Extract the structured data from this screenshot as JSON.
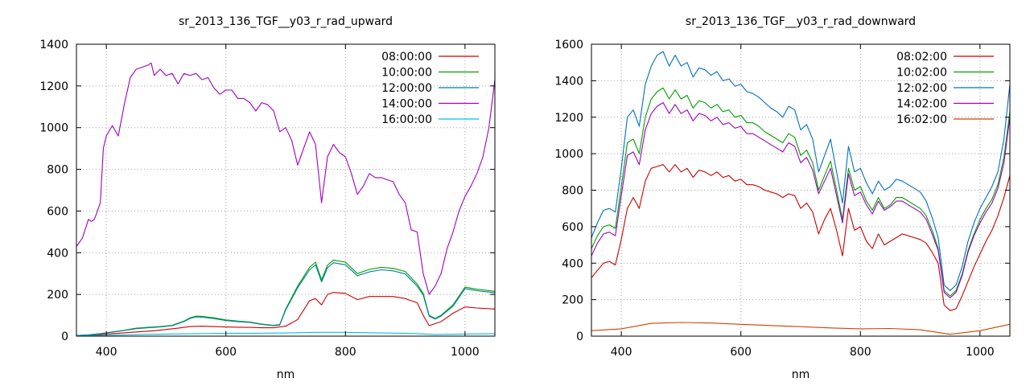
{
  "chart_data": [
    {
      "type": "line",
      "title": "sr_2013_136_TGF__y03_r_rad_upward",
      "xlabel": "nm",
      "ylabel": "",
      "xlim": [
        350,
        1050
      ],
      "ylim": [
        0,
        1400
      ],
      "xticks": [
        400,
        600,
        800,
        1000
      ],
      "yticks": [
        0,
        200,
        400,
        600,
        800,
        1000,
        1200,
        1400
      ],
      "grid": true,
      "legend": "top-right",
      "series": [
        {
          "name": "08:00:00",
          "color": "#cc0000",
          "x": [
            350,
            370,
            400,
            420,
            440,
            460,
            480,
            500,
            520,
            540,
            560,
            580,
            600,
            620,
            640,
            660,
            680,
            700,
            720,
            740,
            750,
            760,
            770,
            780,
            800,
            820,
            840,
            860,
            880,
            900,
            920,
            930,
            940,
            960,
            980,
            1000,
            1020,
            1050
          ],
          "y": [
            2,
            4,
            10,
            14,
            18,
            22,
            26,
            32,
            38,
            46,
            48,
            46,
            44,
            43,
            42,
            40,
            40,
            48,
            80,
            170,
            180,
            150,
            200,
            210,
            205,
            175,
            190,
            190,
            190,
            180,
            160,
            100,
            50,
            70,
            110,
            140,
            135,
            130
          ]
        },
        {
          "name": "10:00:00",
          "color": "#00a000",
          "x": [
            350,
            370,
            390,
            410,
            430,
            450,
            470,
            490,
            510,
            530,
            540,
            550,
            560,
            580,
            600,
            620,
            640,
            660,
            680,
            690,
            700,
            720,
            740,
            750,
            760,
            770,
            780,
            800,
            820,
            840,
            860,
            880,
            900,
            920,
            930,
            940,
            950,
            960,
            980,
            1000,
            1020,
            1050
          ],
          "y": [
            3,
            6,
            12,
            20,
            28,
            38,
            42,
            46,
            52,
            72,
            88,
            96,
            95,
            88,
            78,
            72,
            68,
            58,
            52,
            55,
            130,
            240,
            330,
            355,
            270,
            340,
            365,
            355,
            300,
            320,
            330,
            325,
            310,
            250,
            205,
            100,
            85,
            100,
            150,
            235,
            225,
            215
          ]
        },
        {
          "name": "12:00:00",
          "color": "#0080a0",
          "x": [
            350,
            370,
            390,
            410,
            430,
            450,
            470,
            490,
            510,
            530,
            540,
            550,
            560,
            580,
            600,
            620,
            640,
            660,
            680,
            690,
            700,
            720,
            740,
            750,
            760,
            770,
            780,
            800,
            820,
            840,
            860,
            880,
            900,
            920,
            930,
            940,
            950,
            960,
            980,
            1000,
            1020,
            1050
          ],
          "y": [
            3,
            6,
            12,
            19,
            27,
            36,
            40,
            44,
            50,
            70,
            85,
            92,
            91,
            84,
            75,
            70,
            66,
            56,
            50,
            53,
            125,
            232,
            318,
            342,
            260,
            328,
            352,
            342,
            290,
            308,
            318,
            313,
            298,
            240,
            198,
            96,
            82,
            96,
            144,
            228,
            218,
            208
          ]
        },
        {
          "name": "14:00:00",
          "color": "#a000c0",
          "x": [
            350,
            360,
            370,
            375,
            380,
            390,
            395,
            400,
            410,
            420,
            430,
            440,
            450,
            460,
            470,
            475,
            480,
            490,
            500,
            510,
            520,
            530,
            540,
            550,
            560,
            570,
            580,
            590,
            600,
            610,
            620,
            630,
            640,
            650,
            660,
            670,
            680,
            690,
            700,
            710,
            720,
            730,
            740,
            750,
            760,
            770,
            780,
            790,
            800,
            810,
            820,
            830,
            840,
            850,
            860,
            870,
            880,
            890,
            900,
            910,
            920,
            930,
            940,
            950,
            960,
            970,
            980,
            990,
            1000,
            1010,
            1020,
            1030,
            1040,
            1050
          ],
          "y": [
            430,
            470,
            560,
            550,
            560,
            640,
            900,
            960,
            1010,
            960,
            1110,
            1240,
            1280,
            1290,
            1300,
            1310,
            1250,
            1280,
            1250,
            1260,
            1210,
            1260,
            1250,
            1260,
            1230,
            1240,
            1190,
            1160,
            1180,
            1180,
            1140,
            1140,
            1120,
            1080,
            1120,
            1110,
            1080,
            980,
            1000,
            940,
            820,
            900,
            980,
            920,
            640,
            860,
            920,
            880,
            860,
            780,
            680,
            720,
            780,
            760,
            760,
            750,
            740,
            680,
            640,
            510,
            500,
            300,
            200,
            240,
            300,
            420,
            500,
            600,
            670,
            720,
            780,
            860,
            1000,
            1230
          ]
        },
        {
          "name": "16:00:00",
          "color": "#00c0e0",
          "x": [
            350,
            400,
            450,
            500,
            550,
            600,
            650,
            700,
            750,
            800,
            850,
            900,
            950,
            1000,
            1050
          ],
          "y": [
            2,
            4,
            8,
            10,
            12,
            14,
            14,
            15,
            18,
            18,
            16,
            14,
            8,
            10,
            12
          ]
        }
      ]
    },
    {
      "type": "line",
      "title": "sr_2013_136_TGF__y03_r_rad_downward",
      "xlabel": "nm",
      "ylabel": "",
      "xlim": [
        350,
        1050
      ],
      "ylim": [
        0,
        1600
      ],
      "xticks": [
        400,
        600,
        800,
        1000
      ],
      "yticks": [
        0,
        200,
        400,
        600,
        800,
        1000,
        1200,
        1400,
        1600
      ],
      "grid": true,
      "legend": "top-right",
      "series": [
        {
          "name": "08:02:00",
          "color": "#cc0000",
          "x": [
            350,
            360,
            370,
            380,
            390,
            400,
            410,
            420,
            430,
            440,
            450,
            460,
            470,
            480,
            490,
            500,
            510,
            520,
            530,
            540,
            550,
            560,
            570,
            580,
            590,
            600,
            610,
            620,
            630,
            640,
            650,
            660,
            670,
            680,
            690,
            700,
            710,
            720,
            730,
            740,
            750,
            760,
            770,
            780,
            790,
            800,
            810,
            820,
            830,
            840,
            850,
            860,
            870,
            880,
            890,
            900,
            910,
            920,
            930,
            940,
            950,
            960,
            970,
            980,
            990,
            1000,
            1010,
            1020,
            1030,
            1040,
            1050
          ],
          "y": [
            320,
            360,
            400,
            410,
            390,
            530,
            700,
            760,
            700,
            850,
            920,
            930,
            940,
            900,
            940,
            900,
            920,
            870,
            910,
            900,
            880,
            900,
            870,
            880,
            850,
            860,
            830,
            830,
            820,
            800,
            790,
            780,
            760,
            780,
            770,
            700,
            730,
            680,
            560,
            640,
            700,
            580,
            440,
            700,
            580,
            600,
            520,
            480,
            560,
            500,
            520,
            540,
            560,
            550,
            540,
            530,
            510,
            460,
            400,
            170,
            140,
            150,
            220,
            300,
            380,
            450,
            520,
            580,
            660,
            760,
            880
          ]
        },
        {
          "name": "10:02:00",
          "color": "#00a000",
          "x": [
            350,
            360,
            370,
            380,
            390,
            400,
            410,
            420,
            430,
            440,
            450,
            460,
            470,
            480,
            490,
            500,
            510,
            520,
            530,
            540,
            550,
            560,
            570,
            580,
            590,
            600,
            610,
            620,
            630,
            640,
            650,
            660,
            670,
            680,
            690,
            700,
            710,
            720,
            730,
            740,
            750,
            760,
            770,
            780,
            790,
            800,
            810,
            820,
            830,
            840,
            850,
            860,
            870,
            880,
            890,
            900,
            910,
            920,
            930,
            940,
            950,
            960,
            970,
            980,
            990,
            1000,
            1010,
            1020,
            1030,
            1040,
            1050
          ],
          "y": [
            480,
            550,
            600,
            610,
            590,
            820,
            1060,
            1080,
            1000,
            1200,
            1300,
            1340,
            1360,
            1300,
            1350,
            1300,
            1320,
            1250,
            1290,
            1280,
            1250,
            1270,
            1230,
            1240,
            1200,
            1210,
            1170,
            1170,
            1150,
            1120,
            1100,
            1080,
            1060,
            1110,
            1090,
            990,
            1020,
            950,
            800,
            880,
            960,
            800,
            640,
            920,
            800,
            820,
            740,
            690,
            760,
            700,
            720,
            760,
            760,
            740,
            720,
            700,
            660,
            580,
            480,
            250,
            220,
            250,
            340,
            470,
            560,
            640,
            700,
            750,
            830,
            980,
            1230
          ]
        },
        {
          "name": "12:02:00",
          "color": "#0070c0",
          "x": [
            350,
            360,
            370,
            380,
            390,
            400,
            410,
            420,
            430,
            440,
            450,
            460,
            470,
            480,
            490,
            500,
            510,
            520,
            530,
            540,
            550,
            560,
            570,
            580,
            590,
            600,
            610,
            620,
            630,
            640,
            650,
            660,
            670,
            680,
            690,
            700,
            710,
            720,
            730,
            740,
            750,
            760,
            770,
            780,
            790,
            800,
            810,
            820,
            830,
            840,
            850,
            860,
            870,
            880,
            890,
            900,
            910,
            920,
            930,
            940,
            950,
            960,
            970,
            980,
            990,
            1000,
            1010,
            1020,
            1030,
            1040,
            1050
          ],
          "y": [
            540,
            620,
            690,
            700,
            680,
            920,
            1200,
            1240,
            1150,
            1380,
            1480,
            1540,
            1560,
            1480,
            1540,
            1480,
            1500,
            1420,
            1470,
            1460,
            1430,
            1450,
            1400,
            1410,
            1370,
            1380,
            1340,
            1330,
            1310,
            1280,
            1250,
            1230,
            1200,
            1260,
            1240,
            1130,
            1160,
            1080,
            900,
            990,
            1080,
            900,
            730,
            1040,
            900,
            920,
            840,
            780,
            850,
            800,
            820,
            860,
            850,
            830,
            810,
            790,
            740,
            650,
            540,
            280,
            250,
            280,
            380,
            520,
            620,
            700,
            760,
            820,
            900,
            1080,
            1380
          ]
        },
        {
          "name": "14:02:00",
          "color": "#a000c0",
          "x": [
            350,
            360,
            370,
            380,
            390,
            400,
            410,
            420,
            430,
            440,
            450,
            460,
            470,
            480,
            490,
            500,
            510,
            520,
            530,
            540,
            550,
            560,
            570,
            580,
            590,
            600,
            610,
            620,
            630,
            640,
            650,
            660,
            670,
            680,
            690,
            700,
            710,
            720,
            730,
            740,
            750,
            760,
            770,
            780,
            790,
            800,
            810,
            820,
            830,
            840,
            850,
            860,
            870,
            880,
            890,
            900,
            910,
            920,
            930,
            940,
            950,
            960,
            970,
            980,
            990,
            1000,
            1010,
            1020,
            1030,
            1040,
            1050
          ],
          "y": [
            440,
            510,
            560,
            570,
            550,
            770,
            990,
            1010,
            940,
            1130,
            1220,
            1260,
            1280,
            1220,
            1270,
            1220,
            1240,
            1180,
            1220,
            1210,
            1180,
            1200,
            1160,
            1170,
            1140,
            1150,
            1110,
            1110,
            1090,
            1070,
            1050,
            1030,
            1010,
            1060,
            1040,
            950,
            980,
            910,
            780,
            850,
            920,
            770,
            620,
            890,
            770,
            790,
            720,
            670,
            740,
            690,
            710,
            740,
            740,
            720,
            700,
            680,
            640,
            560,
            470,
            240,
            210,
            240,
            330,
            460,
            550,
            620,
            680,
            730,
            810,
            950,
            1200
          ]
        },
        {
          "name": "16:02:00",
          "color": "#cc4400",
          "x": [
            350,
            400,
            450,
            500,
            550,
            600,
            650,
            700,
            750,
            800,
            850,
            900,
            950,
            1000,
            1050
          ],
          "y": [
            30,
            40,
            70,
            75,
            72,
            65,
            58,
            52,
            45,
            40,
            42,
            35,
            10,
            30,
            65
          ]
        }
      ]
    }
  ]
}
